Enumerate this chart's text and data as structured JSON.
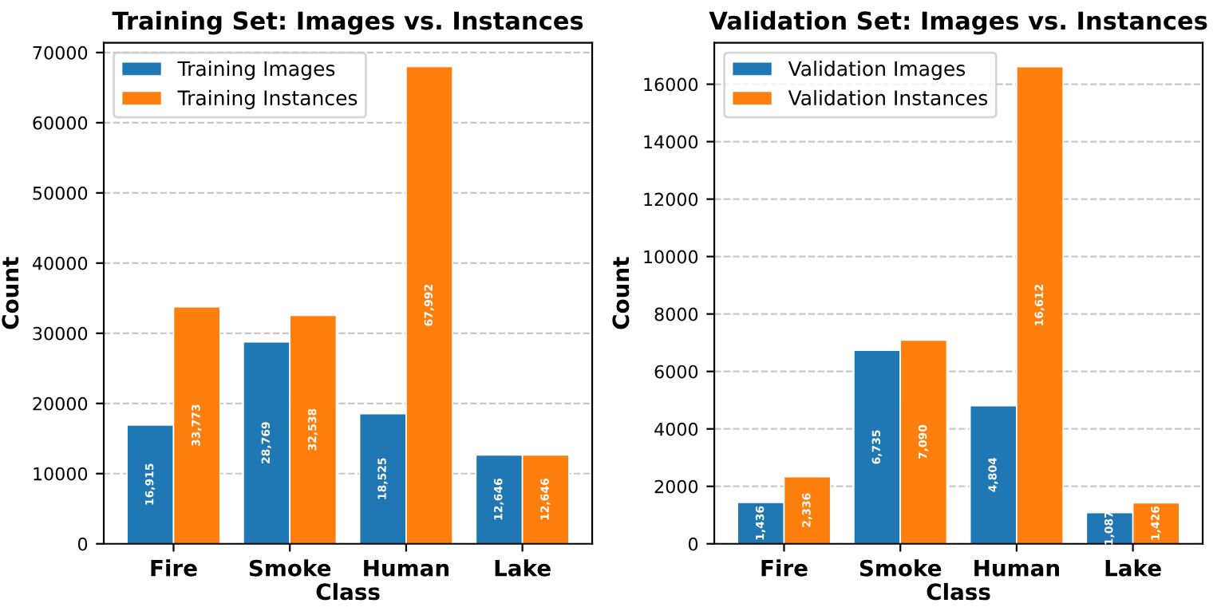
{
  "chart_data": [
    {
      "type": "bar",
      "title": "Training Set: Images vs. Instances",
      "xlabel": "Class",
      "ylabel": "Count",
      "categories": [
        "Fire",
        "Smoke",
        "Human",
        "Lake"
      ],
      "series": [
        {
          "name": "Training Images",
          "color": "#1f77b4",
          "values": [
            16915,
            28769,
            18525,
            12646
          ],
          "value_labels": [
            "16,915",
            "28,769",
            "18,525",
            "12,646"
          ]
        },
        {
          "name": "Training Instances",
          "color": "#ff7f0e",
          "values": [
            33773,
            32538,
            67992,
            12646
          ],
          "value_labels": [
            "33,773",
            "32,538",
            "67,992",
            "12,646"
          ]
        }
      ],
      "ylim": [
        0,
        71392
      ],
      "yticks": [
        0,
        10000,
        20000,
        30000,
        40000,
        50000,
        60000,
        70000
      ],
      "grid": "y",
      "legend": "top left"
    },
    {
      "type": "bar",
      "title": "Validation Set: Images vs. Instances",
      "xlabel": "Class",
      "ylabel": "Count",
      "categories": [
        "Fire",
        "Smoke",
        "Human",
        "Lake"
      ],
      "series": [
        {
          "name": "Validation Images",
          "color": "#1f77b4",
          "values": [
            1436,
            6735,
            4804,
            1087
          ],
          "value_labels": [
            "1,436",
            "6,735",
            "4,804",
            "1,087"
          ]
        },
        {
          "name": "Validation Instances",
          "color": "#ff7f0e",
          "values": [
            2336,
            7090,
            16612,
            1426
          ],
          "value_labels": [
            "2,336",
            "7,090",
            "16,612",
            "1,426"
          ]
        }
      ],
      "ylim": [
        0,
        17443
      ],
      "yticks": [
        0,
        2000,
        4000,
        6000,
        8000,
        10000,
        12000,
        14000,
        16000
      ],
      "grid": "y",
      "legend": "top left"
    }
  ]
}
